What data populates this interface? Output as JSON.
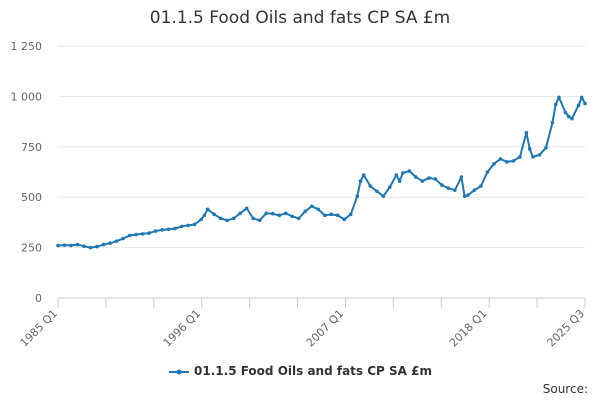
{
  "chart_data": {
    "type": "line",
    "title": "01.1.5 Food Oils and fats CP SA £m",
    "xlabel": "",
    "ylabel": "",
    "ylim": [
      0,
      1250
    ],
    "yticks": [
      0,
      250,
      500,
      750,
      1000,
      1250
    ],
    "ytick_labels": [
      "0",
      "250",
      "500",
      "750",
      "1 000",
      "1 250"
    ],
    "x_range": [
      1985.0,
      2025.5
    ],
    "xtick_labels": [
      "1985 Q1",
      "1996 Q1",
      "2007 Q1",
      "2018 Q1",
      "2025 Q3"
    ],
    "xtick_years": [
      1985.0,
      1996.0,
      2007.0,
      2018.0,
      2025.5
    ],
    "grid": "horizontal",
    "legend_position": "bottom",
    "series": [
      {
        "name": "01.1.5 Food Oils and fats CP SA £m",
        "color": "#1f77b4",
        "points": [
          [
            "1985 Q1",
            260
          ],
          [
            "1985 Q3",
            262
          ],
          [
            "1986 Q1",
            261
          ],
          [
            "1986 Q3",
            265
          ],
          [
            "1987 Q1",
            257
          ],
          [
            "1987 Q3",
            250
          ],
          [
            "1988 Q1",
            255
          ],
          [
            "1988 Q3",
            265
          ],
          [
            "1989 Q1",
            272
          ],
          [
            "1989 Q3",
            282
          ],
          [
            "1990 Q1",
            295
          ],
          [
            "1990 Q3",
            310
          ],
          [
            "1991 Q1",
            315
          ],
          [
            "1991 Q3",
            318
          ],
          [
            "1992 Q1",
            322
          ],
          [
            "1992 Q3",
            332
          ],
          [
            "1993 Q1",
            338
          ],
          [
            "1993 Q3",
            341
          ],
          [
            "1994 Q1",
            345
          ],
          [
            "1994 Q3",
            355
          ],
          [
            "1995 Q1",
            360
          ],
          [
            "1995 Q3",
            365
          ],
          [
            "1996 Q1",
            390
          ],
          [
            "1996 Q2",
            410
          ],
          [
            "1996 Q3",
            440
          ],
          [
            "1997 Q1",
            415
          ],
          [
            "1997 Q3",
            395
          ],
          [
            "1998 Q1",
            385
          ],
          [
            "1998 Q3",
            395
          ],
          [
            "1999 Q1",
            420
          ],
          [
            "1999 Q3",
            445
          ],
          [
            "2000 Q1",
            395
          ],
          [
            "2000 Q3",
            385
          ],
          [
            "2001 Q1",
            420
          ],
          [
            "2001 Q3",
            418
          ],
          [
            "2002 Q1",
            410
          ],
          [
            "2002 Q3",
            420
          ],
          [
            "2003 Q1",
            405
          ],
          [
            "2003 Q3",
            395
          ],
          [
            "2004 Q1",
            430
          ],
          [
            "2004 Q3",
            455
          ],
          [
            "2005 Q1",
            440
          ],
          [
            "2005 Q3",
            410
          ],
          [
            "2006 Q1",
            415
          ],
          [
            "2006 Q3",
            410
          ],
          [
            "2007 Q1",
            390
          ],
          [
            "2007 Q3",
            415
          ],
          [
            "2008 Q1",
            505
          ],
          [
            "2008 Q2",
            580
          ],
          [
            "2008 Q3",
            610
          ],
          [
            "2009 Q1",
            555
          ],
          [
            "2009 Q3",
            530
          ],
          [
            "2010 Q1",
            505
          ],
          [
            "2010 Q3",
            550
          ],
          [
            "2011 Q1",
            610
          ],
          [
            "2011 Q2",
            580
          ],
          [
            "2011 Q3",
            620
          ],
          [
            "2012 Q1",
            630
          ],
          [
            "2012 Q3",
            600
          ],
          [
            "2013 Q1",
            580
          ],
          [
            "2013 Q3",
            595
          ],
          [
            "2014 Q1",
            590
          ],
          [
            "2014 Q3",
            560
          ],
          [
            "2015 Q1",
            545
          ],
          [
            "2015 Q3",
            535
          ],
          [
            "2016 Q1",
            600
          ],
          [
            "2016 Q2",
            505
          ],
          [
            "2016 Q3",
            510
          ],
          [
            "2017 Q1",
            535
          ],
          [
            "2017 Q3",
            555
          ],
          [
            "2018 Q1",
            625
          ],
          [
            "2018 Q3",
            665
          ],
          [
            "2019 Q1",
            690
          ],
          [
            "2019 Q3",
            675
          ],
          [
            "2020 Q1",
            680
          ],
          [
            "2020 Q3",
            700
          ],
          [
            "2021 Q1",
            820
          ],
          [
            "2021 Q2",
            740
          ],
          [
            "2021 Q3",
            700
          ],
          [
            "2022 Q1",
            710
          ],
          [
            "2022 Q3",
            745
          ],
          [
            "2023 Q1",
            870
          ],
          [
            "2023 Q2",
            960
          ],
          [
            "2023 Q3",
            995
          ],
          [
            "2024 Q1",
            920
          ],
          [
            "2024 Q2",
            900
          ],
          [
            "2024 Q3",
            890
          ],
          [
            "2025 Q1",
            955
          ],
          [
            "2025 Q2",
            995
          ],
          [
            "2025 Q3",
            965
          ]
        ]
      }
    ]
  },
  "legend": {
    "label": "01.1.5 Food Oils and fats CP SA £m"
  },
  "source": {
    "label": "Source:"
  }
}
